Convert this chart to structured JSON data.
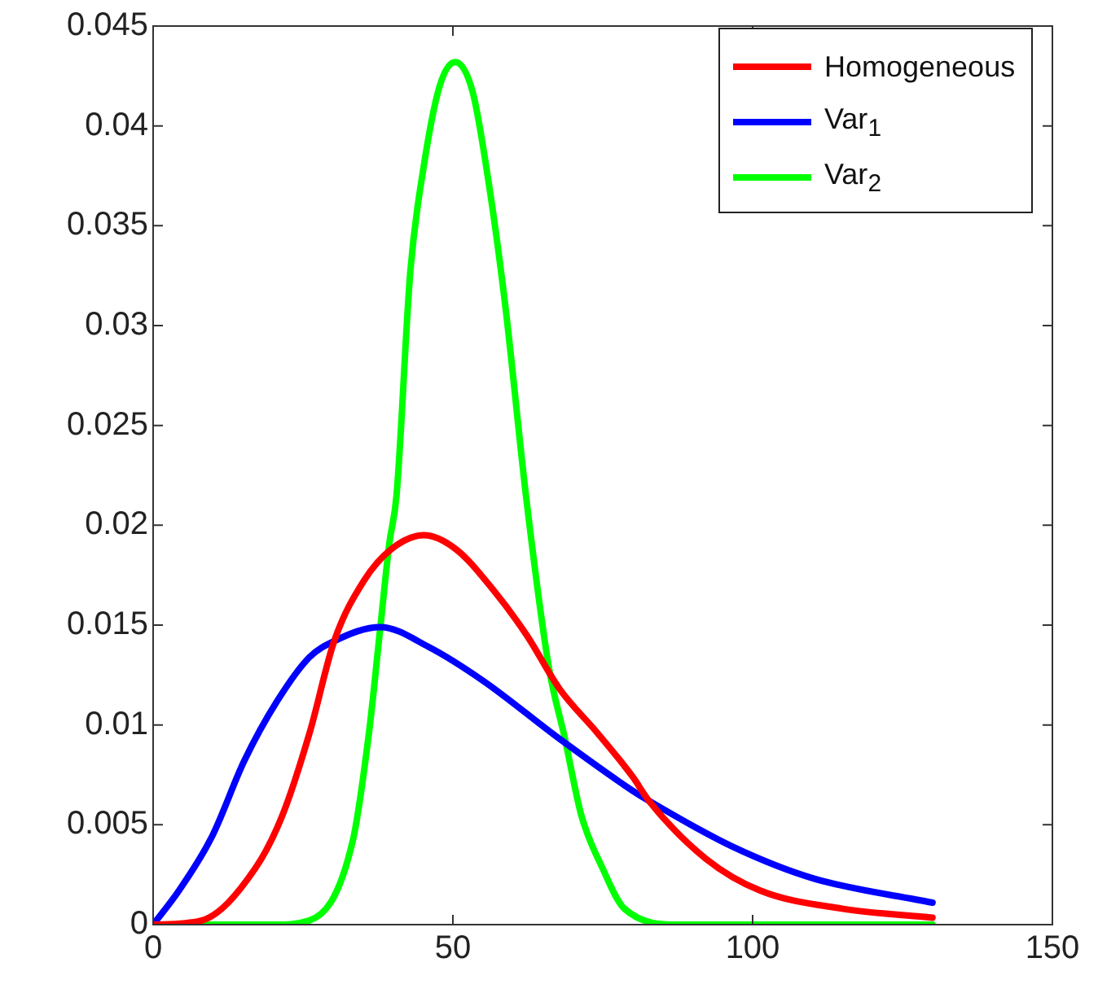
{
  "chart_data": {
    "type": "line",
    "xlim": [
      0,
      150
    ],
    "xticks": [
      0,
      50,
      100,
      150
    ],
    "ylim": [
      0,
      0.045
    ],
    "yticks": [
      0,
      0.005,
      0.01,
      0.015,
      0.02,
      0.025,
      0.03,
      0.035,
      0.04,
      0.045
    ],
    "grid": false,
    "legend": "top right",
    "marker": "none",
    "line_style": "solid",
    "series": [
      {
        "name": "Homogeneous",
        "color": "#ff0000",
        "x": [
          0,
          8,
          17,
          21.6,
          26.1,
          30.2,
          35.1,
          39.7,
          45.1,
          50.5,
          56.9,
          62.3,
          67.8,
          74.1,
          80,
          82.7,
          92.2,
          101.3,
          114.9,
          130
        ],
        "values": [
          0,
          0.0002,
          0.0028,
          0.0055,
          0.0096,
          0.0142,
          0.0172,
          0.0188,
          0.0195,
          0.0188,
          0.0167,
          0.0145,
          0.0118,
          0.0096,
          0.0074,
          0.0062,
          0.0033,
          0.0017,
          0.0008,
          0.00035
        ]
      },
      {
        "name": "Var$_{1}$",
        "color": "#0000ff",
        "x": [
          0,
          4.3,
          9.8,
          15.2,
          20.7,
          26.1,
          30.2,
          37.9,
          46,
          55.1,
          67.8,
          80,
          82.7,
          96.7,
          110.3,
          130
        ],
        "values": [
          0,
          0.0017,
          0.0044,
          0.0082,
          0.0112,
          0.0134,
          0.0142,
          0.0149,
          0.0139,
          0.0122,
          0.0093,
          0.0067,
          0.0062,
          0.0039,
          0.0023,
          0.0011
        ]
      },
      {
        "name": "Var$_{2}$",
        "color": "#00ff00",
        "x": [
          0,
          20,
          26,
          33.3,
          36,
          37.9,
          39.4,
          40.6,
          42.9,
          45.1,
          47.8,
          50.4,
          53.3,
          56,
          58.7,
          62.3,
          66,
          68.7,
          71.4,
          75,
          78.6,
          87.7,
          130
        ],
        "values": [
          0,
          0,
          0.0002,
          0.0042,
          0.0096,
          0.0149,
          0.0191,
          0.0215,
          0.0327,
          0.0379,
          0.042,
          0.0432,
          0.0417,
          0.0371,
          0.0311,
          0.0212,
          0.0129,
          0.0093,
          0.0055,
          0.0028,
          0.0008,
          0,
          0
        ]
      }
    ]
  }
}
